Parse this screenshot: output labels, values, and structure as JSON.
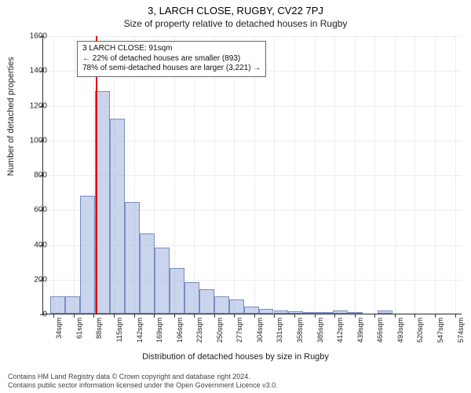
{
  "title": "3, LARCH CLOSE, RUGBY, CV22 7PJ",
  "subtitle": "Size of property relative to detached houses in Rugby",
  "ylabel": "Number of detached properties",
  "xlabel": "Distribution of detached houses by size in Rugby",
  "chart": {
    "type": "histogram",
    "background_color": "#ffffff",
    "grid_color": "#eceef5",
    "axis_color": "#333333",
    "bar_fill": "rgba(150,170,220,0.5)",
    "bar_stroke": "#7a8dc0",
    "marker_color": "#d00000",
    "marker_x": 91,
    "xlim": [
      20,
      584
    ],
    "ylim": [
      0,
      1600
    ],
    "xtick_start": 34,
    "xtick_step": 27,
    "xtick_count": 21,
    "xtick_suffix": "sqm",
    "yticks": [
      0,
      200,
      400,
      600,
      800,
      1000,
      1200,
      1400,
      1600
    ],
    "bar_start": 30,
    "bar_width_units": 20,
    "values": [
      100,
      100,
      680,
      1280,
      1120,
      640,
      460,
      380,
      260,
      180,
      140,
      100,
      80,
      40,
      25,
      20,
      15,
      10,
      5,
      20,
      5,
      0,
      18,
      0,
      0,
      0,
      0
    ]
  },
  "legend": {
    "line1": "3 LARCH CLOSE: 91sqm",
    "line2": "← 22% of detached houses are smaller (893)",
    "line3": "78% of semi-detached houses are larger (3,221) →"
  },
  "footer": {
    "line1": "Contains HM Land Registry data © Crown copyright and database right 2024.",
    "line2": "Contains public sector information licensed under the Open Government Licence v3.0."
  }
}
